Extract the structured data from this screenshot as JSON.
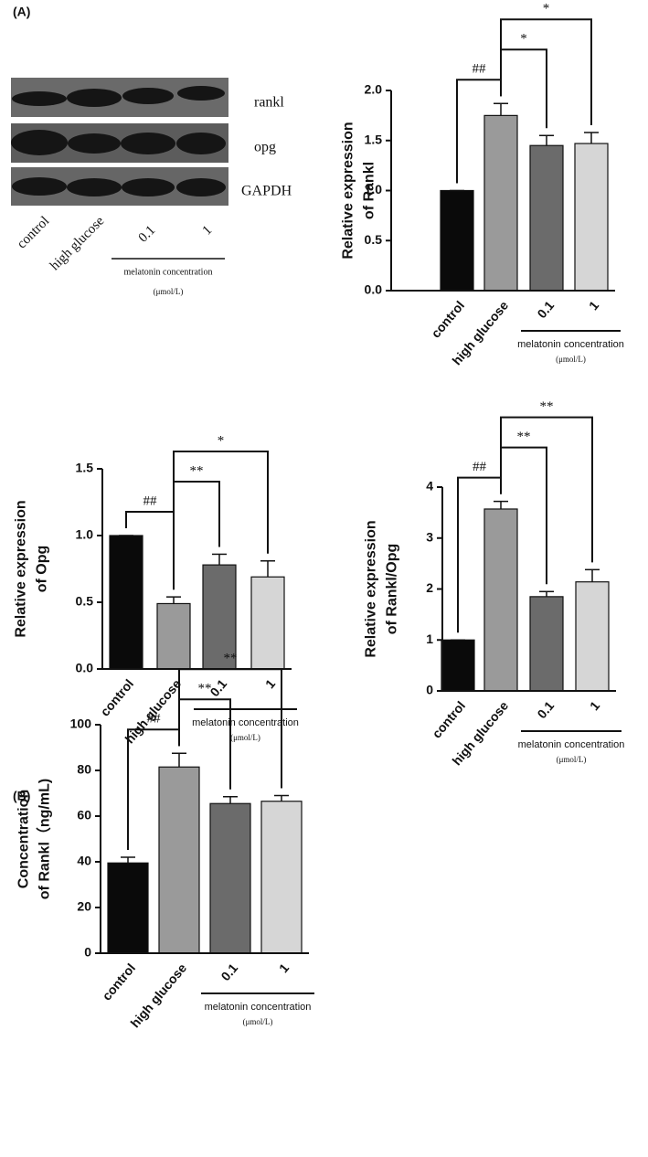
{
  "panel_labels": [
    "(A)",
    "(B)"
  ],
  "blot": {
    "bands": [
      "rankl",
      "opg",
      "GAPDH"
    ],
    "lanes": [
      "control",
      "high glucose",
      "0.1",
      "1"
    ],
    "group_label": "melatonin concentration",
    "group_unit": "(μmol/L)"
  },
  "chart_data": [
    {
      "type": "bar",
      "ylabel": [
        "Relative expression",
        "of Rankl"
      ],
      "categories": [
        "control",
        "high glucose",
        "0.1",
        "1"
      ],
      "values": [
        1.0,
        1.75,
        1.45,
        1.47
      ],
      "errors": [
        0,
        0.12,
        0.1,
        0.11
      ],
      "colors": [
        "#0a0a0a",
        "#9a9a9a",
        "#6b6b6b",
        "#d6d6d6"
      ],
      "ylim": [
        0,
        2.0
      ],
      "yticks": [
        {
          "value": 0,
          "label": "0.0"
        },
        0.5,
        {
          "value": 1,
          "label": "1.0"
        },
        1.5,
        {
          "value": 2,
          "label": "2.0"
        }
      ],
      "group_label": "melatonin concentration",
      "group_unit": "(μmol/L)",
      "comparisons": [
        {
          "label": "##",
          "between": [
            "control",
            "high glucose"
          ]
        },
        {
          "label": "*",
          "between": [
            "high glucose",
            "0.1"
          ]
        },
        {
          "label": "*",
          "between": [
            "high glucose",
            "1"
          ]
        }
      ]
    },
    {
      "type": "bar",
      "ylabel": [
        "Relative expression",
        "of Opg"
      ],
      "categories": [
        "control",
        "high glucose",
        "0.1",
        "1"
      ],
      "values": [
        1.0,
        0.49,
        0.78,
        0.69
      ],
      "errors": [
        0,
        0.05,
        0.08,
        0.12
      ],
      "colors": [
        "#0a0a0a",
        "#9a9a9a",
        "#6b6b6b",
        "#d6d6d6"
      ],
      "ylim": [
        0,
        1.5
      ],
      "yticks": [
        {
          "value": 0,
          "label": "0.0"
        },
        0.5,
        {
          "value": 1,
          "label": "1.0"
        },
        1.5
      ],
      "group_label": "melatonin concentration",
      "group_unit": "(μmol/L)",
      "comparisons": [
        {
          "label": "##",
          "between": [
            "control",
            "high glucose"
          ]
        },
        {
          "label": "**",
          "between": [
            "high glucose",
            "0.1"
          ]
        },
        {
          "label": "*",
          "between": [
            "high glucose",
            "1"
          ]
        }
      ]
    },
    {
      "type": "bar",
      "ylabel": [
        "Relative expression",
        "of Rankl/Opg"
      ],
      "categories": [
        "control",
        "high glucose",
        "0.1",
        "1"
      ],
      "values": [
        1.0,
        3.57,
        1.85,
        2.14
      ],
      "errors": [
        0,
        0.15,
        0.1,
        0.24
      ],
      "colors": [
        "#0a0a0a",
        "#9a9a9a",
        "#6b6b6b",
        "#d6d6d6"
      ],
      "ylim": [
        0,
        4
      ],
      "yticks": [
        0,
        1,
        2,
        3,
        4
      ],
      "group_label": "melatonin concentration",
      "group_unit": "(μmol/L)",
      "comparisons": [
        {
          "label": "##",
          "between": [
            "control",
            "high glucose"
          ]
        },
        {
          "label": "**",
          "between": [
            "high glucose",
            "0.1"
          ]
        },
        {
          "label": "**",
          "between": [
            "high glucose",
            "1"
          ]
        }
      ]
    },
    {
      "type": "bar",
      "ylabel": [
        "Concentration",
        "of Rankl（ng/mL)"
      ],
      "categories": [
        "control",
        "high glucose",
        "0.1",
        "1"
      ],
      "values": [
        39.5,
        81.5,
        65.5,
        66.5
      ],
      "errors": [
        2.5,
        6,
        3,
        2.5
      ],
      "colors": [
        "#0a0a0a",
        "#9a9a9a",
        "#6b6b6b",
        "#d6d6d6"
      ],
      "ylim": [
        0,
        100
      ],
      "yticks": [
        0,
        20,
        40,
        60,
        80,
        100
      ],
      "group_label": "melatonin concentration",
      "group_unit": "(μmol/L)",
      "comparisons": [
        {
          "label": "##",
          "between": [
            "control",
            "high glucose"
          ]
        },
        {
          "label": "**",
          "between": [
            "high glucose",
            "0.1"
          ]
        },
        {
          "label": "**",
          "between": [
            "high glucose",
            "1"
          ]
        }
      ]
    }
  ]
}
